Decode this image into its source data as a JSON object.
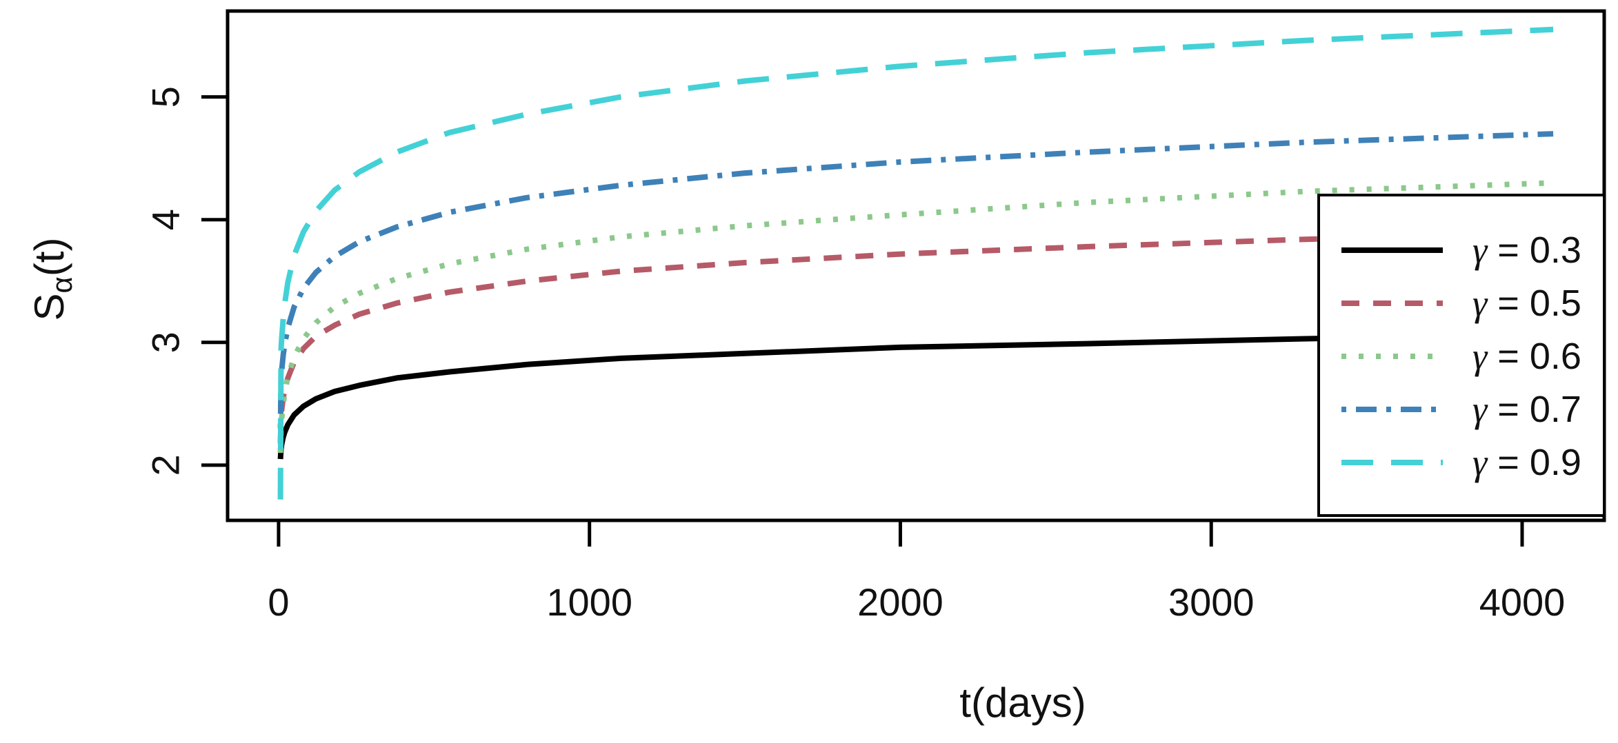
{
  "figure": {
    "background": "#ffffff",
    "description": "R-style line plot of fractional survival function S_alpha(t) versus time in days for five gamma values"
  },
  "chart_data": {
    "type": "line",
    "title": "",
    "xlabel": "t(days)",
    "ylabel": "Sα(t)",
    "ylabel_parts": {
      "base": "S",
      "sub": "α",
      "rest": "(t)"
    },
    "xlim": [
      -164,
      4264
    ],
    "ylim": [
      1.55,
      5.7
    ],
    "xticks": [
      0,
      1000,
      2000,
      3000,
      4000
    ],
    "xtick_labels": [
      "0",
      "1000",
      "2000",
      "3000",
      "4000"
    ],
    "yticks": [
      2,
      3,
      4,
      5
    ],
    "ytick_labels": [
      "2",
      "3",
      "4",
      "5"
    ],
    "grid": false,
    "legend": {
      "position": "inside-right",
      "border_color": "#000000",
      "fill": "#ffffff"
    },
    "x": [
      6,
      8,
      10,
      15,
      20,
      30,
      50,
      80,
      120,
      180,
      260,
      380,
      550,
      800,
      1100,
      1500,
      2000,
      2600,
      3300,
      4100
    ],
    "series": [
      {
        "name": "gamma-0.3",
        "label": "γ = 0.3",
        "param": "γ",
        "value": "0.3",
        "color": "#000000",
        "line_style": "solid",
        "values": [
          2.05,
          2.13,
          2.17,
          2.23,
          2.27,
          2.33,
          2.41,
          2.48,
          2.54,
          2.6,
          2.65,
          2.71,
          2.76,
          2.82,
          2.87,
          2.91,
          2.96,
          2.99,
          3.03,
          3.06
        ]
      },
      {
        "name": "gamma-0.5",
        "label": "γ = 0.5",
        "param": "γ",
        "value": "0.5",
        "color": "#b65a68",
        "line_style": "dashed",
        "values": [
          2.18,
          2.4,
          2.45,
          2.55,
          2.62,
          2.71,
          2.84,
          2.95,
          3.05,
          3.14,
          3.23,
          3.32,
          3.41,
          3.5,
          3.58,
          3.65,
          3.72,
          3.78,
          3.84,
          3.89
        ]
      },
      {
        "name": "gamma-0.6",
        "label": "γ = 0.6",
        "param": "γ",
        "value": "0.6",
        "color": "#8cc88c",
        "line_style": "dotted",
        "values": [
          2.1,
          2.31,
          2.38,
          2.5,
          2.59,
          2.72,
          2.88,
          3.03,
          3.16,
          3.29,
          3.4,
          3.52,
          3.64,
          3.76,
          3.86,
          3.95,
          4.04,
          4.14,
          4.23,
          4.3
        ]
      },
      {
        "name": "gamma-0.7",
        "label": "γ = 0.7",
        "param": "γ",
        "value": "0.7",
        "color": "#3e81b8",
        "line_style": "dashdot",
        "values": [
          2.3,
          2.7,
          2.77,
          2.9,
          2.99,
          3.12,
          3.29,
          3.44,
          3.57,
          3.7,
          3.82,
          3.94,
          4.06,
          4.18,
          4.28,
          4.38,
          4.47,
          4.55,
          4.63,
          4.7
        ]
      },
      {
        "name": "gamma-0.9",
        "label": "γ = 0.9",
        "param": "γ",
        "value": "0.9",
        "color": "#43d1d6",
        "line_style": "longdash",
        "values": [
          1.72,
          2.94,
          3.03,
          3.2,
          3.32,
          3.49,
          3.71,
          3.9,
          4.07,
          4.24,
          4.39,
          4.55,
          4.71,
          4.86,
          5.0,
          5.13,
          5.25,
          5.36,
          5.46,
          5.55
        ]
      }
    ]
  }
}
